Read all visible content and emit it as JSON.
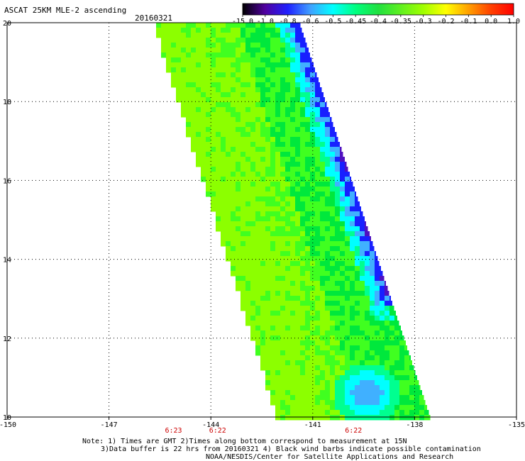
{
  "header": {
    "title": "ASCAT 25KM MLE-2 ascending",
    "date": "20160321"
  },
  "colorbar": {
    "tick_labels": [
      "-15.0",
      "-1.0",
      "-0.8",
      "-0.6",
      "-0.5",
      "-0.45",
      "-0.4",
      "-0.35",
      "-0.3",
      "-0.2",
      "-0.1",
      "0.0",
      "1.0"
    ],
    "colors": [
      "#000000",
      "#5000a0",
      "#2020ff",
      "#40a0ff",
      "#00ffff",
      "#00ff80",
      "#20e040",
      "#60f020",
      "#a0ff00",
      "#ffff00",
      "#ffa000",
      "#ff4000",
      "#ff0000"
    ]
  },
  "axes": {
    "x_ticks": [
      "-150",
      "-147",
      "-144",
      "-141",
      "-138",
      "-135"
    ],
    "x_values": [
      -150,
      -147,
      -144,
      -141,
      -138,
      -135
    ],
    "y_ticks": [
      "20",
      "18",
      "16",
      "14",
      "12",
      "10"
    ],
    "y_values": [
      20,
      18,
      16,
      14,
      12,
      10
    ]
  },
  "swath_times": [
    "6:23",
    "6:22",
    "6:22"
  ],
  "notes": {
    "line1": "Note: 1) Times are GMT 2)Times along bottom correspond to measurement at 15N",
    "line2": "3)Data buffer is 22 hrs from 20160321 4) Black wind barbs indicate possible contamination",
    "line3": "NOAA/NESDIS/Center for Satellite Applications and Research"
  },
  "swath_palette": {
    "lime": "#8cff00",
    "green": "#40ff20",
    "dark_green": "#00e83c",
    "aqua_green": "#00ff90",
    "cyan": "#00ffff",
    "light_blue": "#40b0ff",
    "blue": "#1820ff",
    "indigo": "#5010c0"
  }
}
